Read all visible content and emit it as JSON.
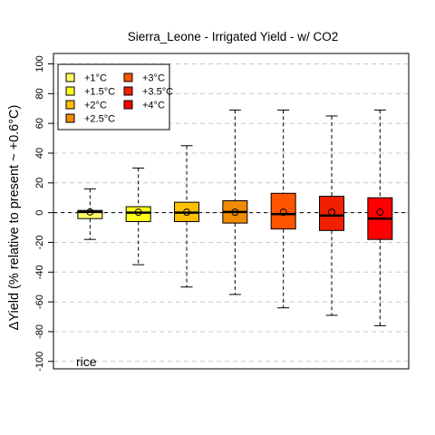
{
  "chart_data": {
    "type": "box",
    "title": "Sierra_Leone - Irrigated Yield - w/ CO2",
    "ylabel": "ΔYield (% relative to present ~ +0.6°C)",
    "ylim": [
      -105,
      107
    ],
    "yticks": [
      -100,
      -80,
      -60,
      -40,
      -20,
      0,
      20,
      40,
      60,
      80,
      100
    ],
    "ytick_labels": [
      "-100",
      "-80",
      "-60",
      "-40",
      "-20",
      "0",
      "20",
      "40",
      "60",
      "80",
      "100"
    ],
    "grid": "horizontal dashed",
    "zero_line": true,
    "legend_position": "top-left",
    "crop_label": "rice",
    "series": [
      {
        "name": "+1°C",
        "color": "#FFFF66",
        "whisker_low": -18,
        "q1": -4,
        "median": 0.5,
        "q3": 1.5,
        "whisker_high": 16,
        "mean": 0.5
      },
      {
        "name": "+1.5°C",
        "color": "#FFFF1A",
        "whisker_low": -35,
        "q1": -6,
        "median": 0,
        "q3": 4,
        "whisker_high": 30,
        "mean": 0.3
      },
      {
        "name": "+2°C",
        "color": "#FFC000",
        "whisker_low": -50,
        "q1": -6,
        "median": 0,
        "q3": 7,
        "whisker_high": 45,
        "mean": 0.3
      },
      {
        "name": "+2.5°C",
        "color": "#F08A00",
        "whisker_low": -55,
        "q1": -7,
        "median": 0.5,
        "q3": 8,
        "whisker_high": 69,
        "mean": 0.3
      },
      {
        "name": "+3°C",
        "color": "#FF5500",
        "whisker_low": -64,
        "q1": -11,
        "median": -1,
        "q3": 13,
        "whisker_high": 69,
        "mean": 0.3
      },
      {
        "name": "+3.5°C",
        "color": "#F02000",
        "whisker_low": -69,
        "q1": -12,
        "median": -2,
        "q3": 11,
        "whisker_high": 65,
        "mean": 0.3
      },
      {
        "name": "+4°C",
        "color": "#FF0000",
        "whisker_low": -76,
        "q1": -18,
        "median": -4,
        "q3": 10,
        "whisker_high": 69,
        "mean": 0.3
      }
    ]
  }
}
